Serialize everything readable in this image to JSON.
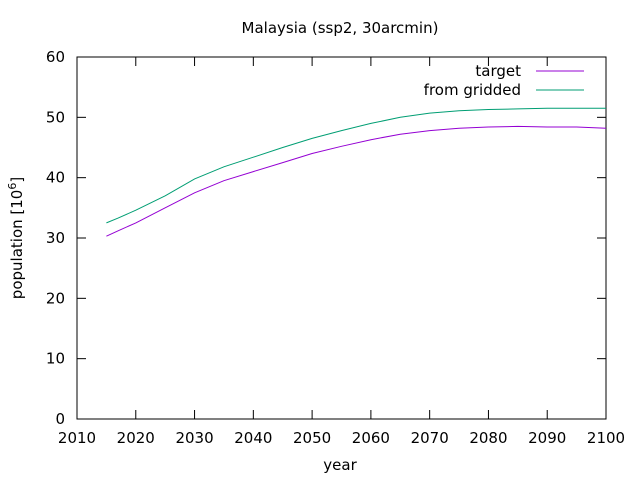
{
  "chart_data": {
    "type": "line",
    "title": "Malaysia (ssp2, 30arcmin)",
    "xlabel": "year",
    "ylabel": "population [10",
    "ylabel_superscript": "6",
    "ylabel_suffix": "]",
    "xlim": [
      2010,
      2100
    ],
    "ylim": [
      0,
      60
    ],
    "xticks": [
      2010,
      2020,
      2030,
      2040,
      2050,
      2060,
      2070,
      2080,
      2090,
      2100
    ],
    "yticks": [
      0,
      10,
      20,
      30,
      40,
      50,
      60
    ],
    "grid": false,
    "legend_position": "top-right",
    "series": [
      {
        "name": "target",
        "color": "#9400d3",
        "x": [
          2015,
          2017,
          2020,
          2025,
          2030,
          2035,
          2040,
          2045,
          2050,
          2055,
          2060,
          2065,
          2070,
          2075,
          2080,
          2085,
          2090,
          2095,
          2100
        ],
        "y": [
          30.3,
          31.2,
          32.5,
          35.0,
          37.5,
          39.5,
          41.0,
          42.5,
          44.0,
          45.2,
          46.3,
          47.2,
          47.8,
          48.2,
          48.4,
          48.5,
          48.4,
          48.4,
          48.2
        ]
      },
      {
        "name": "from gridded",
        "color": "#009e73",
        "x": [
          2015,
          2017,
          2020,
          2025,
          2030,
          2035,
          2040,
          2045,
          2050,
          2055,
          2060,
          2065,
          2070,
          2075,
          2080,
          2085,
          2090,
          2095,
          2100
        ],
        "y": [
          32.5,
          33.3,
          34.6,
          37.0,
          39.8,
          41.8,
          43.4,
          45.0,
          46.5,
          47.8,
          49.0,
          50.0,
          50.7,
          51.1,
          51.3,
          51.4,
          51.5,
          51.5,
          51.5
        ]
      }
    ]
  }
}
